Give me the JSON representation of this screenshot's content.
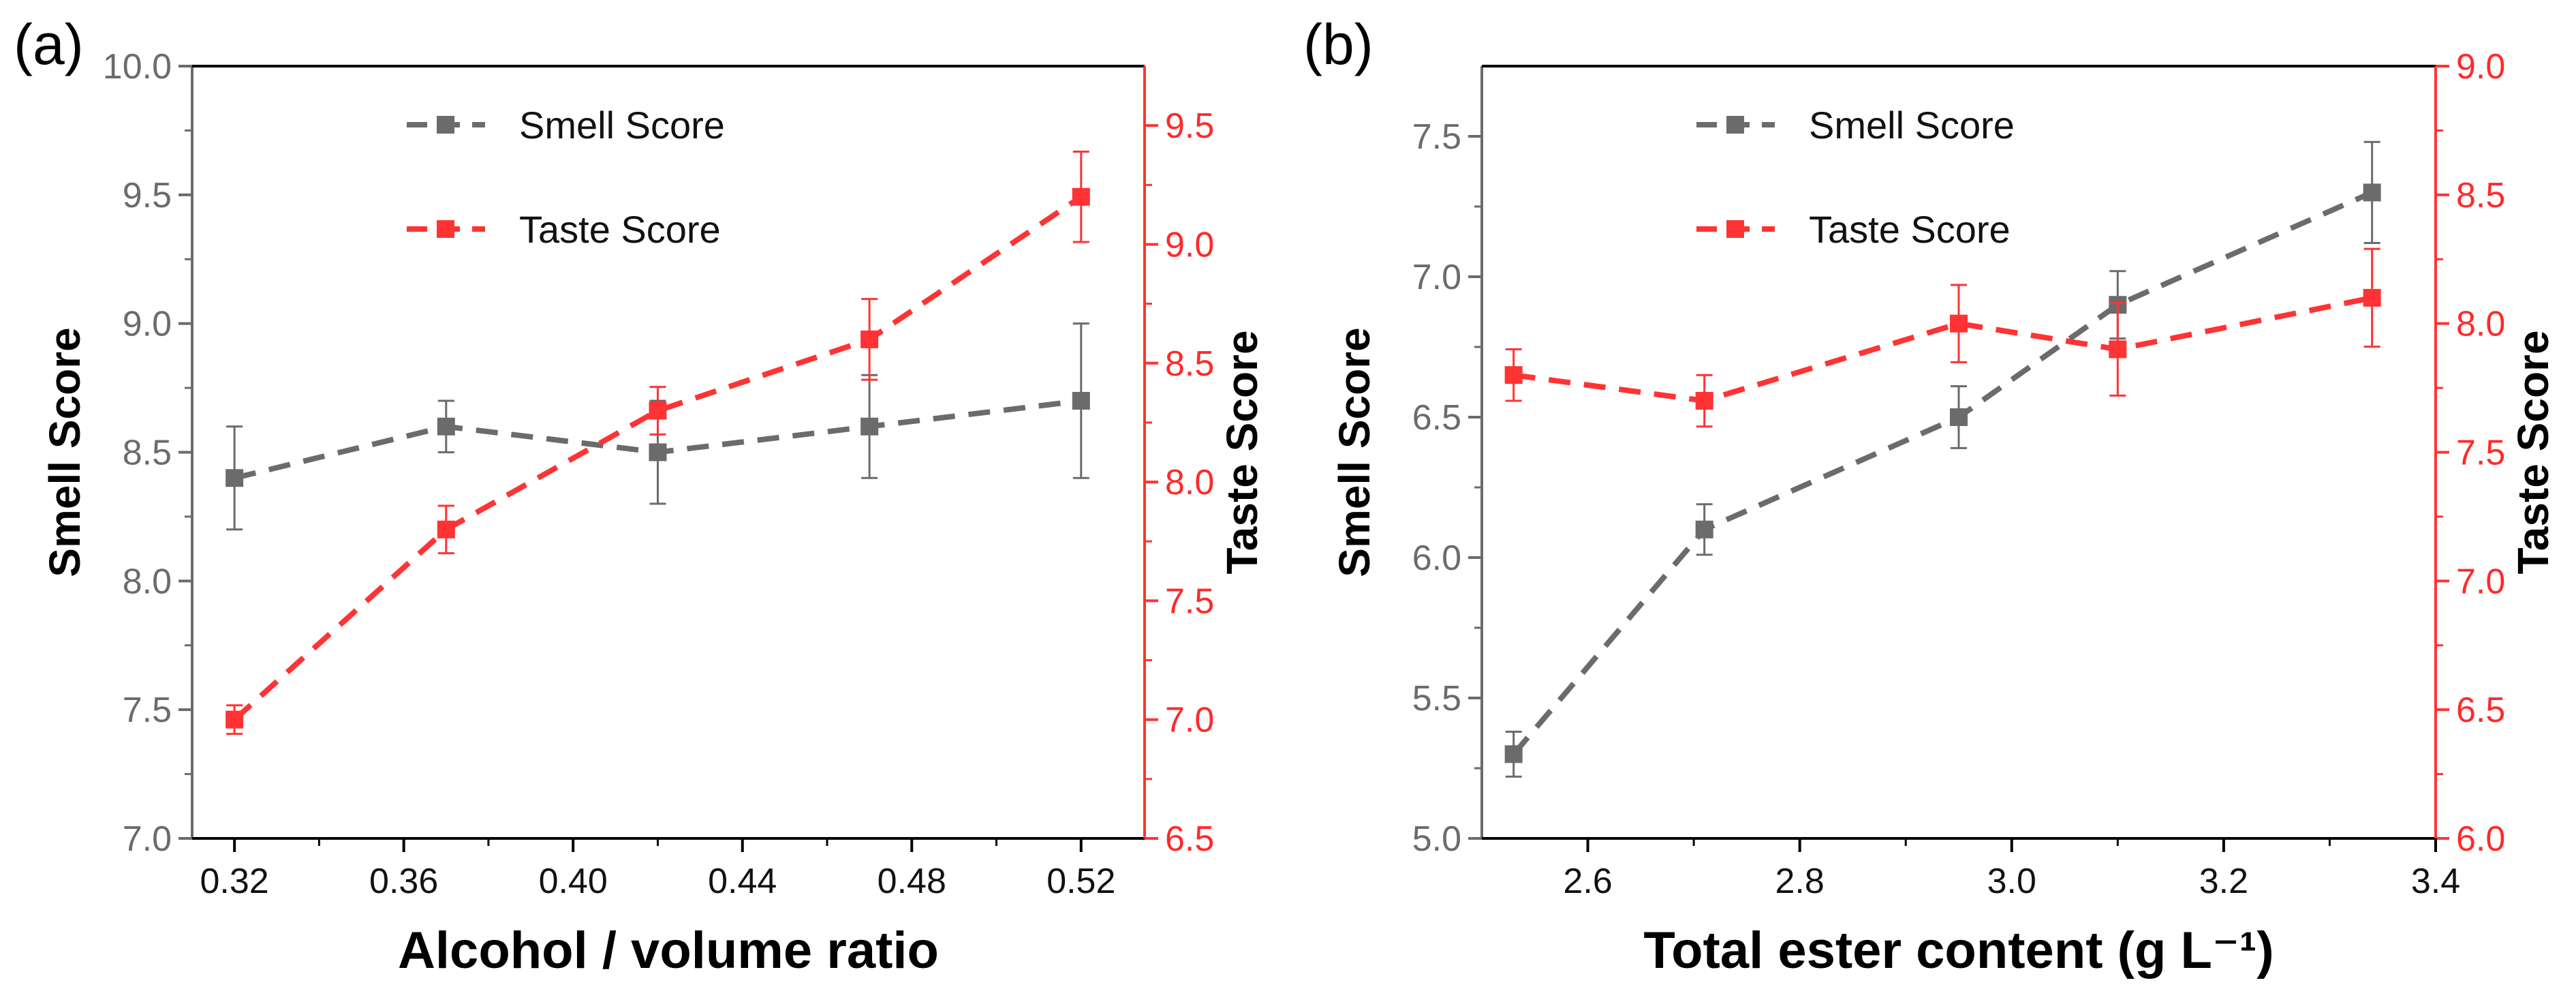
{
  "colors": {
    "smell": "#6b6b6b",
    "taste": "#ff3333",
    "axis": "#000000"
  },
  "chart_data": [
    {
      "type": "line",
      "panel_label": "(a)",
      "xlabel": "Alcohol / volume ratio",
      "ylabel": "Smell Score",
      "y2label": "Taste Score",
      "xlim": [
        0.31,
        0.535
      ],
      "xticks": [
        "0.32",
        "0.36",
        "0.40",
        "0.44",
        "0.48",
        "0.52"
      ],
      "ylim": [
        7.0,
        10.0
      ],
      "yticks": [
        "7.0",
        "7.5",
        "8.0",
        "8.5",
        "9.0",
        "9.5",
        "10.0"
      ],
      "y2lim": [
        6.5,
        9.75
      ],
      "y2ticks": [
        "6.5",
        "7.0",
        "7.5",
        "8.0",
        "8.5",
        "9.0",
        "9.5"
      ],
      "legend": [
        "Smell Score",
        "Taste Score"
      ],
      "series": [
        {
          "name": "Smell Score",
          "axis": "left",
          "x": [
            0.32,
            0.37,
            0.42,
            0.47,
            0.52
          ],
          "y": [
            8.4,
            8.6,
            8.5,
            8.6,
            8.7
          ],
          "err": [
            0.2,
            0.1,
            0.2,
            0.2,
            0.3
          ]
        },
        {
          "name": "Taste Score",
          "axis": "right",
          "x": [
            0.32,
            0.37,
            0.42,
            0.47,
            0.52
          ],
          "y": [
            7.0,
            7.8,
            8.3,
            8.6,
            9.2
          ],
          "err": [
            0.06,
            0.1,
            0.1,
            0.17,
            0.19
          ]
        }
      ]
    },
    {
      "type": "line",
      "panel_label": "(b)",
      "xlabel": "Total ester content (g L⁻¹)",
      "ylabel": "Smell Score",
      "y2label": "Taste Score",
      "xlim": [
        2.5,
        3.4
      ],
      "xticks": [
        "2.6",
        "2.8",
        "3.0",
        "3.2",
        "3.4"
      ],
      "ylim": [
        5.0,
        7.75
      ],
      "yticks": [
        "5.0",
        "5.5",
        "6.0",
        "6.5",
        "7.0",
        "7.5"
      ],
      "y2lim": [
        6.0,
        9.0
      ],
      "y2ticks": [
        "6.0",
        "6.5",
        "7.0",
        "7.5",
        "8.0",
        "8.5",
        "9.0"
      ],
      "legend": [
        "Smell Score",
        "Taste Score"
      ],
      "series": [
        {
          "name": "Smell Score",
          "axis": "left",
          "x": [
            2.53,
            2.71,
            2.95,
            3.1,
            3.34
          ],
          "y": [
            5.3,
            6.1,
            6.5,
            6.9,
            7.3
          ],
          "err": [
            0.08,
            0.09,
            0.11,
            0.12,
            0.18
          ]
        },
        {
          "name": "Taste Score",
          "axis": "right",
          "x": [
            2.53,
            2.71,
            2.95,
            3.1,
            3.34
          ],
          "y": [
            7.8,
            7.7,
            8.0,
            7.9,
            8.1
          ],
          "err": [
            0.1,
            0.1,
            0.15,
            0.18,
            0.19
          ]
        }
      ]
    }
  ]
}
